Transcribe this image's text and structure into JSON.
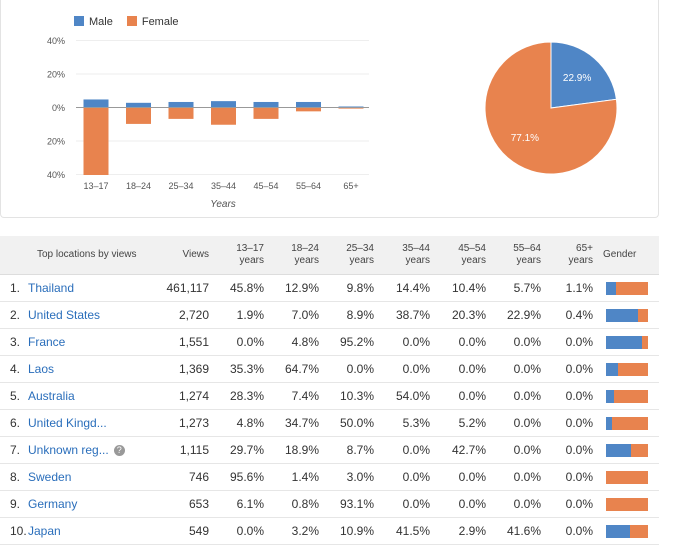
{
  "chart": {
    "legend": [
      {
        "label": "Male",
        "color": "#4f86c6"
      },
      {
        "label": "Female",
        "color": "#e8834e"
      }
    ],
    "y_ticks": [
      "40%",
      "20%",
      "0%",
      "20%",
      "40%"
    ],
    "xlabel": "Years"
  },
  "chart_data": [
    {
      "type": "bar",
      "categories": [
        "13–17",
        "18–24",
        "25–34",
        "35–44",
        "45–54",
        "55–64",
        "65+"
      ],
      "series": [
        {
          "name": "Male",
          "values": [
            4.5,
            2.5,
            3.0,
            3.5,
            3.0,
            3.0,
            0.3
          ]
        },
        {
          "name": "Female",
          "values": [
            -40,
            -9.5,
            -6.5,
            -10,
            -6.5,
            -2,
            -0.2
          ]
        }
      ],
      "ylim": [
        -40,
        40
      ],
      "xlabel": "Years",
      "ylabel": ""
    },
    {
      "type": "pie",
      "labels": [
        "Male",
        "Female"
      ],
      "values": [
        22.9,
        77.1
      ],
      "data_labels": [
        "22.9%",
        "77.1%"
      ]
    }
  ],
  "table": {
    "headers": [
      "Top locations by views",
      "Views",
      "13–17 years",
      "18–24 years",
      "25–34 years",
      "35–44 years",
      "45–54 years",
      "55–64 years",
      "65+ years",
      "Gender"
    ],
    "rows": [
      {
        "idx": "1.",
        "loc": "Thailand",
        "views": "461,117",
        "vals": [
          "45.8%",
          "12.9%",
          "9.8%",
          "14.4%",
          "10.4%",
          "5.7%",
          "1.1%"
        ],
        "male": 0.23,
        "help": false
      },
      {
        "idx": "2.",
        "loc": "United States",
        "views": "2,720",
        "vals": [
          "1.9%",
          "7.0%",
          "8.9%",
          "38.7%",
          "20.3%",
          "22.9%",
          "0.4%"
        ],
        "male": 0.77,
        "help": false
      },
      {
        "idx": "3.",
        "loc": "France",
        "views": "1,551",
        "vals": [
          "0.0%",
          "4.8%",
          "95.2%",
          "0.0%",
          "0.0%",
          "0.0%",
          "0.0%"
        ],
        "male": 0.86,
        "help": false
      },
      {
        "idx": "4.",
        "loc": "Laos",
        "views": "1,369",
        "vals": [
          "35.3%",
          "64.7%",
          "0.0%",
          "0.0%",
          "0.0%",
          "0.0%",
          "0.0%"
        ],
        "male": 0.29,
        "help": false
      },
      {
        "idx": "5.",
        "loc": "Australia",
        "views": "1,274",
        "vals": [
          "28.3%",
          "7.4%",
          "10.3%",
          "54.0%",
          "0.0%",
          "0.0%",
          "0.0%"
        ],
        "male": 0.19,
        "help": false
      },
      {
        "idx": "6.",
        "loc": "United Kingd...",
        "views": "1,273",
        "vals": [
          "4.8%",
          "34.7%",
          "50.0%",
          "5.3%",
          "5.2%",
          "0.0%",
          "0.0%"
        ],
        "male": 0.14,
        "help": false
      },
      {
        "idx": "7.",
        "loc": "Unknown reg...",
        "views": "1,115",
        "vals": [
          "29.7%",
          "18.9%",
          "8.7%",
          "0.0%",
          "42.7%",
          "0.0%",
          "0.0%"
        ],
        "male": 0.6,
        "help": true
      },
      {
        "idx": "8.",
        "loc": "Sweden",
        "views": "746",
        "vals": [
          "95.6%",
          "1.4%",
          "3.0%",
          "0.0%",
          "0.0%",
          "0.0%",
          "0.0%"
        ],
        "male": 0.0,
        "help": false
      },
      {
        "idx": "9.",
        "loc": "Germany",
        "views": "653",
        "vals": [
          "6.1%",
          "0.8%",
          "93.1%",
          "0.0%",
          "0.0%",
          "0.0%",
          "0.0%"
        ],
        "male": 0.0,
        "help": false
      },
      {
        "idx": "10.",
        "loc": "Japan",
        "views": "549",
        "vals": [
          "0.0%",
          "3.2%",
          "10.9%",
          "41.5%",
          "2.9%",
          "41.6%",
          "0.0%"
        ],
        "male": 0.57,
        "help": false
      }
    ]
  }
}
